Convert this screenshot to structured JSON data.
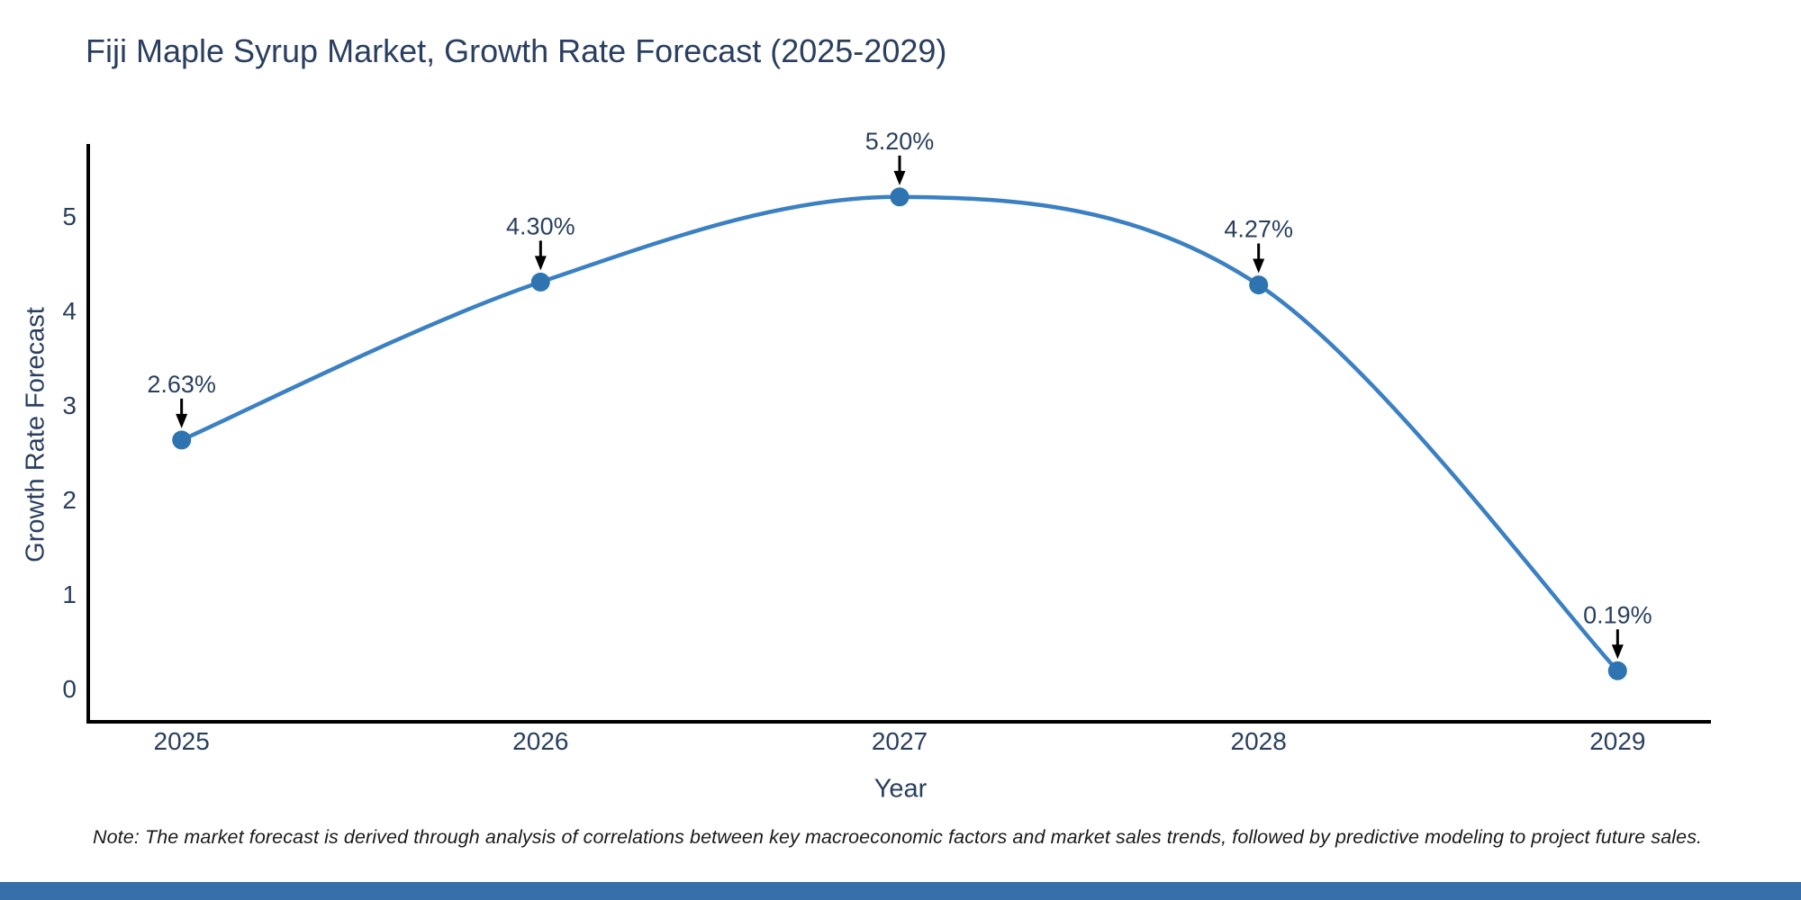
{
  "chart_data": {
    "type": "line",
    "title": "Fiji Maple Syrup Market, Growth Rate Forecast (2025-2029)",
    "xlabel": "Year",
    "ylabel": "Growth Rate Forecast",
    "note": "Note: The market forecast is derived through analysis of correlations between key macroeconomic factors and market sales trends, followed by predictive modeling to project future sales.",
    "categories": [
      "2025",
      "2026",
      "2027",
      "2028",
      "2029"
    ],
    "x": [
      2025,
      2026,
      2027,
      2028,
      2029
    ],
    "values": [
      2.63,
      4.3,
      5.2,
      4.27,
      0.19
    ],
    "point_labels": [
      "2.63%",
      "4.30%",
      "5.20%",
      "4.27%",
      "0.19%"
    ],
    "yticks": [
      0,
      1,
      2,
      3,
      4,
      5
    ],
    "ylim": [
      -0.35,
      5.76
    ],
    "xlim": [
      2024.74,
      2029.26
    ],
    "line_shape": "spline",
    "grid": false,
    "legend": "none",
    "colors": {
      "line": "#3b80c2",
      "marker": "#2e74b1",
      "axis": "#000000",
      "text": "#2a3f5f",
      "annotation_arrow": "#000000",
      "bottom_bar": "#366fa9"
    }
  }
}
